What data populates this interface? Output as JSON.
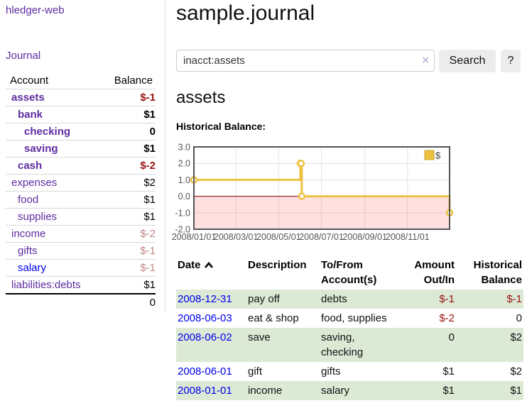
{
  "app": {
    "brand": "hledger-web",
    "nav_journal": "Journal"
  },
  "colors": {
    "accent_purple": "#5e2ca0",
    "link_blue": "#0000ee",
    "negative_red": "#991111",
    "soft_negative_red": "#c08686",
    "row_green": "#dce9d5",
    "series_yellow": "#edc240"
  },
  "sidebar": {
    "headers": {
      "account": "Account",
      "balance": "Balance"
    },
    "accounts": [
      {
        "name": "assets",
        "cls": "bold d1",
        "balance": "$-1",
        "bcls": "neg bold"
      },
      {
        "name": "bank",
        "cls": "bold d2",
        "balance": "$1",
        "bcls": "bold"
      },
      {
        "name": "checking",
        "cls": "bold d3",
        "balance": "0",
        "bcls": "bold"
      },
      {
        "name": "saving",
        "cls": "bold d3",
        "balance": "$1",
        "bcls": "bold"
      },
      {
        "name": "cash",
        "cls": "bold d2",
        "balance": "$-2",
        "bcls": "neg bold"
      },
      {
        "name": "expenses",
        "cls": "d1",
        "balance": "$2",
        "bcls": ""
      },
      {
        "name": "food",
        "cls": "d2",
        "balance": "$1",
        "bcls": ""
      },
      {
        "name": "supplies",
        "cls": "d2",
        "balance": "$1",
        "bcls": ""
      },
      {
        "name": "income",
        "cls": "d1",
        "balance": "$-2",
        "bcls": "negsoft"
      },
      {
        "name": "gifts",
        "cls": "d2",
        "balance": "$-1",
        "bcls": "negsoft"
      },
      {
        "name": "salary",
        "cls": "blue d2",
        "balance": "$-1",
        "bcls": "negsoft"
      },
      {
        "name": "liabilities:debts",
        "cls": "d1",
        "balance": "$1",
        "bcls": ""
      }
    ],
    "total": "0"
  },
  "header": {
    "title": "sample.journal"
  },
  "search": {
    "value": "inacct:assets",
    "clear_icon": "×",
    "button": "Search",
    "help": "?"
  },
  "account_page": {
    "title": "assets",
    "chart_label": "Historical Balance:"
  },
  "chart_data": {
    "type": "line",
    "title": "Historical Balance",
    "step": true,
    "xrange": [
      "2008-01-01",
      "2008-12-31"
    ],
    "ylim": [
      -2,
      3
    ],
    "yticks": [
      "3.0",
      "2.0",
      "1.0",
      "0.0",
      "-1.0",
      "-2.0"
    ],
    "xticks": [
      "2008/01/01",
      "2008/03/01",
      "2008/05/01",
      "2008/07/01",
      "2008/09/01",
      "2008/11/01"
    ],
    "grid": true,
    "legend_position": "top-right",
    "negative_region_color": "rgba(255,0,0,0.12)",
    "zero_line_color": "#8b0000",
    "series": [
      {
        "name": "$",
        "color": "#edc240",
        "points": [
          [
            "2008-01-01",
            1
          ],
          [
            "2008-06-01",
            2
          ],
          [
            "2008-06-02",
            2
          ],
          [
            "2008-06-03",
            0
          ],
          [
            "2008-12-31",
            -1
          ]
        ]
      }
    ]
  },
  "register": {
    "headers": {
      "date": "Date",
      "description": "Description",
      "accounts": "To/From Account(s)",
      "amount": "Amount Out/In",
      "balance": "Historical Balance"
    },
    "rows": [
      {
        "date": "2008-12-31",
        "description": "pay off",
        "accounts": "debts",
        "amount": "$-1",
        "acls": "neg",
        "balance": "$-1",
        "bcls": "neg"
      },
      {
        "date": "2008-06-03",
        "description": "eat & shop",
        "accounts": "food, supplies",
        "amount": "$-2",
        "acls": "neg",
        "balance": "0",
        "bcls": ""
      },
      {
        "date": "2008-06-02",
        "description": "save",
        "accounts": "saving, checking",
        "amount": "0",
        "acls": "",
        "balance": "$2",
        "bcls": ""
      },
      {
        "date": "2008-06-01",
        "description": "gift",
        "accounts": "gifts",
        "amount": "$1",
        "acls": "",
        "balance": "$2",
        "bcls": ""
      },
      {
        "date": "2008-01-01",
        "description": "income",
        "accounts": "salary",
        "amount": "$1",
        "acls": "",
        "balance": "$1",
        "bcls": ""
      }
    ]
  }
}
